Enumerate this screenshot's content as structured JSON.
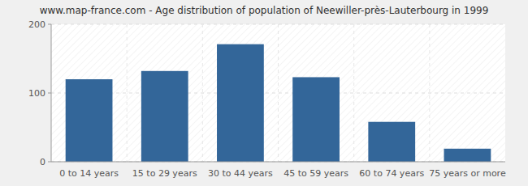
{
  "chart_data": {
    "type": "bar",
    "title": "www.map-france.com - Age distribution of population of Neewiller-près-Lauterbourg in 1999",
    "categories": [
      "0 to 14 years",
      "15 to 29 years",
      "30 to 44 years",
      "45 to 59 years",
      "60 to 74 years",
      "75 years or more"
    ],
    "values": [
      120,
      132,
      171,
      123,
      58,
      19
    ],
    "color": "#336699",
    "ylim": [
      0,
      200
    ],
    "yticks": [
      0,
      100,
      200
    ],
    "grid": true
  }
}
